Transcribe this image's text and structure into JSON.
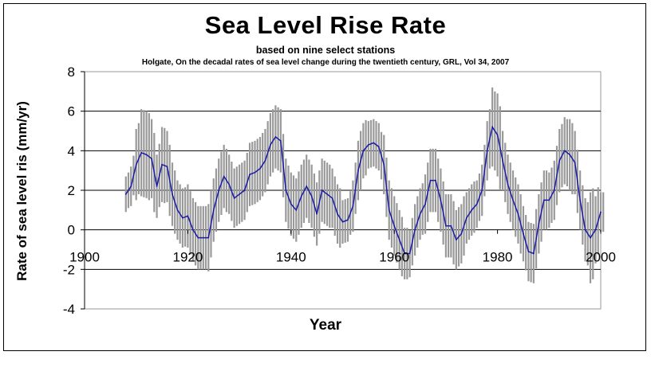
{
  "chart_data": {
    "type": "line",
    "title": "Sea Level Rise Rate",
    "subtitle": "based on nine select stations",
    "source": "Holgate, On the decadal rates of sea level change during the twentieth century, GRL, Vol 34, 2007",
    "xlabel": "Year",
    "ylabel": "Rate of sea level ris (mm/yr)",
    "xlim": [
      1900,
      2000
    ],
    "ylim": [
      -4,
      8
    ],
    "xticks": [
      "1900",
      "1920",
      "1940",
      "1960",
      "1980",
      "2000"
    ],
    "yticks": [
      "8",
      "6",
      "4",
      "2",
      "0",
      "-2",
      "-4"
    ],
    "grid": true,
    "colors": {
      "line": "#1a1aa8",
      "error_bars": "#999999",
      "grid": "#000000"
    },
    "series": [
      {
        "x": [
          1908,
          1909,
          1910,
          1911,
          1912,
          1913,
          1914,
          1915,
          1916,
          1917,
          1918,
          1919,
          1920,
          1921,
          1922,
          1923,
          1924,
          1925,
          1926,
          1927,
          1928,
          1929,
          1930,
          1931,
          1932,
          1933,
          1934,
          1935,
          1936,
          1937,
          1938,
          1939,
          1940,
          1941,
          1942,
          1943,
          1944,
          1945,
          1946,
          1947,
          1948,
          1949,
          1950,
          1951,
          1952,
          1953,
          1954,
          1955,
          1956,
          1957,
          1958,
          1959,
          1960,
          1961,
          1962,
          1963,
          1964,
          1965,
          1966,
          1967,
          1968,
          1969,
          1970,
          1971,
          1972,
          1973,
          1974,
          1975,
          1976,
          1977,
          1978,
          1979,
          1980,
          1981,
          1982,
          1983,
          1984,
          1985,
          1986,
          1987,
          1988,
          1989,
          1990,
          1991,
          1992,
          1993,
          1994,
          1995,
          1996,
          1997,
          1998,
          1999,
          2000
        ],
        "y": [
          1.8,
          2.2,
          3.3,
          3.9,
          3.8,
          3.6,
          2.2,
          3.3,
          3.2,
          1.8,
          1.0,
          0.6,
          0.7,
          0.0,
          -0.4,
          -0.4,
          -0.4,
          1.0,
          2.0,
          2.7,
          2.3,
          1.6,
          1.8,
          2.0,
          2.8,
          2.9,
          3.1,
          3.5,
          4.3,
          4.7,
          4.5,
          2.0,
          1.3,
          1.0,
          1.7,
          2.2,
          1.7,
          0.8,
          2.0,
          1.8,
          1.6,
          0.8,
          0.4,
          0.5,
          1.2,
          3.0,
          4.0,
          4.3,
          4.4,
          4.2,
          3.3,
          1.0,
          0.2,
          -0.5,
          -1.2,
          -1.2,
          0.0,
          0.8,
          1.3,
          2.5,
          2.5,
          1.5,
          0.2,
          0.2,
          -0.5,
          -0.2,
          0.6,
          1.0,
          1.3,
          2.0,
          4.0,
          5.2,
          4.8,
          3.5,
          2.3,
          1.5,
          0.8,
          -0.2,
          -1.1,
          -1.2,
          0.3,
          1.5,
          1.5,
          2.0,
          3.5,
          4.0,
          3.8,
          3.4,
          1.5,
          0.0,
          -0.4,
          0.0,
          0.9
        ],
        "error": [
          0.9,
          1.0,
          1.8,
          2.2,
          2.2,
          2.0,
          1.6,
          1.9,
          1.8,
          1.6,
          1.5,
          1.5,
          1.6,
          1.6,
          1.6,
          1.6,
          1.7,
          1.6,
          1.6,
          1.6,
          1.5,
          1.5,
          1.5,
          1.5,
          1.6,
          1.6,
          1.6,
          1.6,
          1.6,
          1.6,
          1.6,
          1.6,
          1.6,
          1.6,
          1.6,
          1.6,
          1.6,
          1.6,
          1.6,
          1.6,
          1.5,
          1.5,
          1.1,
          1.1,
          1.3,
          1.5,
          1.4,
          1.2,
          1.2,
          1.2,
          1.5,
          1.5,
          1.5,
          1.5,
          1.3,
          1.2,
          1.3,
          1.3,
          1.5,
          1.6,
          1.6,
          1.6,
          1.6,
          1.6,
          1.5,
          1.5,
          1.3,
          1.3,
          1.2,
          1.3,
          1.5,
          2.0,
          2.1,
          1.5,
          1.5,
          1.5,
          1.5,
          1.4,
          1.5,
          1.5,
          1.5,
          1.5,
          1.4,
          1.5,
          1.6,
          1.7,
          1.8,
          1.6,
          1.5,
          1.6,
          2.3,
          1.7,
          1.0
        ]
      }
    ]
  }
}
